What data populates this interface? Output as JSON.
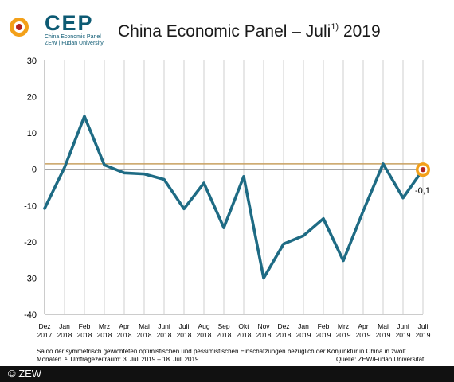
{
  "logo": {
    "word": "CEP",
    "line1": "China Economic Panel",
    "line2": "ZEW | Fudan University"
  },
  "title": {
    "main": "China Economic Panel – Juli",
    "sup": "1)",
    "year": "2019"
  },
  "chart_data": {
    "type": "line",
    "x_month": [
      "Dez",
      "Jan",
      "Feb",
      "Mrz",
      "Apr",
      "Mai",
      "Juni",
      "Juli",
      "Aug",
      "Sep",
      "Okt",
      "Nov",
      "Dez",
      "Jan",
      "Feb",
      "Mrz",
      "Apr",
      "Mai",
      "Juni",
      "Juli"
    ],
    "x_year": [
      "2017",
      "2018",
      "2018",
      "2018",
      "2018",
      "2018",
      "2018",
      "2018",
      "2018",
      "2018",
      "2018",
      "2018",
      "2018",
      "2019",
      "2019",
      "2019",
      "2019",
      "2019",
      "2019",
      "2019"
    ],
    "series": [
      {
        "values": [
          -10.8,
          0.5,
          14.6,
          1.2,
          -1.0,
          -1.3,
          -2.8,
          -10.9,
          -3.8,
          -16.1,
          -2.0,
          -30.0,
          -20.6,
          -18.3,
          -13.6,
          -25.2,
          -11.5,
          1.5,
          -7.9,
          -0.1
        ]
      }
    ],
    "reference_line": 1.5,
    "last_value_label": "-0,1",
    "yticks": [
      30,
      20,
      10,
      0,
      -10,
      -20,
      -30,
      -40
    ],
    "ylim": [
      -40,
      30
    ],
    "grid": "vertical",
    "line_color": "#1e6b84",
    "reference_color": "#c8a060",
    "marker_color": "#b22222"
  },
  "footnote": {
    "line1": "Saldo der symmetrisch gewichteten optimistischen und pessimistischen Einschätzungen bezüglich der Konjunktur in China in zwölf",
    "line2": "Monaten. ¹⁾ Umfragezeitraum: 3. Juli 2019 – 18. Juli 2019.",
    "source": "Quelle: ZEW/Fudan Universität"
  },
  "copyright": "© ZEW"
}
